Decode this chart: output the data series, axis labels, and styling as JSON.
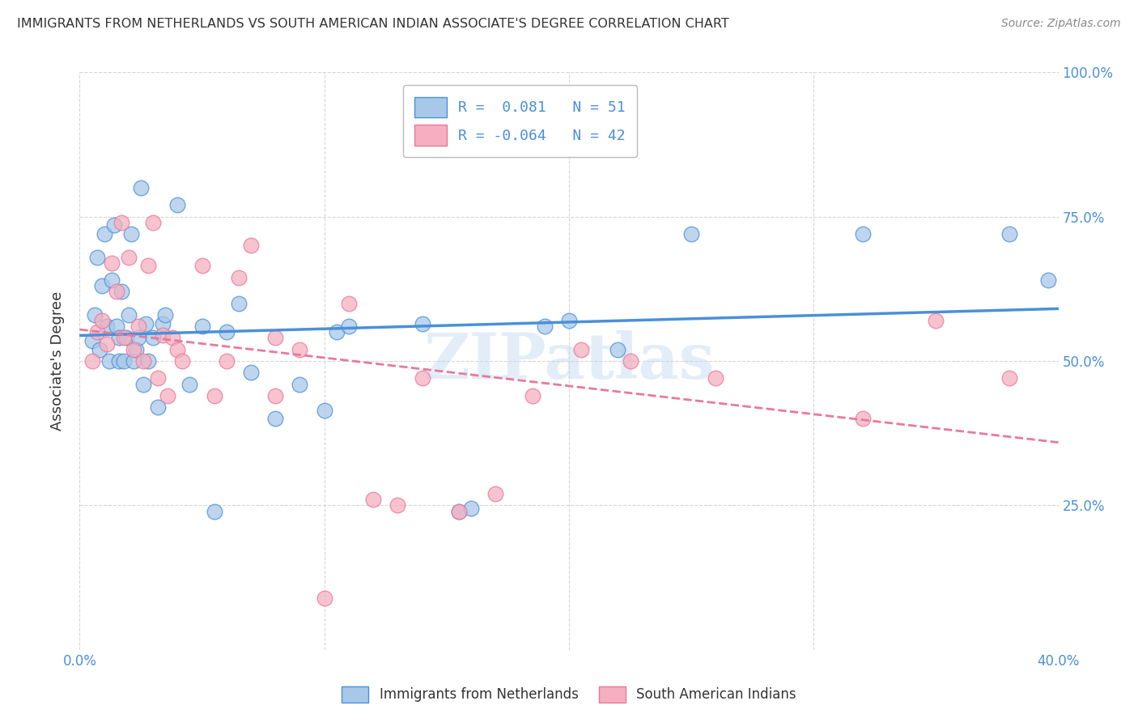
{
  "title": "IMMIGRANTS FROM NETHERLANDS VS SOUTH AMERICAN INDIAN ASSOCIATE'S DEGREE CORRELATION CHART",
  "source": "Source: ZipAtlas.com",
  "ylabel": "Associate's Degree",
  "xlim": [
    0.0,
    0.4
  ],
  "ylim": [
    0.0,
    1.0
  ],
  "xtick_vals": [
    0.0,
    0.1,
    0.2,
    0.3,
    0.4
  ],
  "xtick_labels_bottom": [
    "0.0%",
    "",
    "",
    "",
    "40.0%"
  ],
  "ytick_vals": [
    0.25,
    0.5,
    0.75,
    1.0
  ],
  "right_ytick_labels": [
    "25.0%",
    "50.0%",
    "75.0%",
    "100.0%"
  ],
  "blue_R": 0.081,
  "blue_N": 51,
  "pink_R": -0.064,
  "pink_N": 42,
  "blue_color": "#a8c8e8",
  "pink_color": "#f5afc0",
  "blue_line_color": "#4a90d9",
  "pink_line_color": "#e8799a",
  "watermark": "ZIPatlas",
  "blue_scatter_x": [
    0.005,
    0.006,
    0.007,
    0.008,
    0.009,
    0.01,
    0.011,
    0.012,
    0.013,
    0.014,
    0.015,
    0.016,
    0.016,
    0.017,
    0.018,
    0.019,
    0.02,
    0.021,
    0.022,
    0.023,
    0.024,
    0.025,
    0.026,
    0.027,
    0.028,
    0.03,
    0.032,
    0.034,
    0.035,
    0.04,
    0.045,
    0.05,
    0.055,
    0.06,
    0.065,
    0.07,
    0.08,
    0.09,
    0.1,
    0.105,
    0.11,
    0.14,
    0.155,
    0.16,
    0.19,
    0.2,
    0.22,
    0.25,
    0.32,
    0.38,
    0.396
  ],
  "blue_scatter_y": [
    0.535,
    0.58,
    0.68,
    0.52,
    0.63,
    0.72,
    0.56,
    0.5,
    0.64,
    0.735,
    0.56,
    0.5,
    0.54,
    0.62,
    0.5,
    0.54,
    0.58,
    0.72,
    0.5,
    0.52,
    0.54,
    0.8,
    0.46,
    0.565,
    0.5,
    0.54,
    0.42,
    0.565,
    0.58,
    0.77,
    0.46,
    0.56,
    0.24,
    0.55,
    0.6,
    0.48,
    0.4,
    0.46,
    0.415,
    0.55,
    0.56,
    0.565,
    0.24,
    0.245,
    0.56,
    0.57,
    0.52,
    0.72,
    0.72,
    0.72,
    0.64
  ],
  "pink_scatter_x": [
    0.005,
    0.007,
    0.009,
    0.011,
    0.013,
    0.015,
    0.017,
    0.018,
    0.02,
    0.022,
    0.024,
    0.026,
    0.028,
    0.03,
    0.032,
    0.034,
    0.036,
    0.038,
    0.04,
    0.042,
    0.05,
    0.055,
    0.06,
    0.065,
    0.07,
    0.08,
    0.09,
    0.1,
    0.11,
    0.12,
    0.13,
    0.14,
    0.155,
    0.17,
    0.185,
    0.205,
    0.225,
    0.26,
    0.32,
    0.35,
    0.08,
    0.38
  ],
  "pink_scatter_y": [
    0.5,
    0.55,
    0.57,
    0.53,
    0.67,
    0.62,
    0.74,
    0.54,
    0.68,
    0.52,
    0.56,
    0.5,
    0.665,
    0.74,
    0.47,
    0.545,
    0.44,
    0.54,
    0.52,
    0.5,
    0.665,
    0.44,
    0.5,
    0.645,
    0.7,
    0.54,
    0.52,
    0.09,
    0.6,
    0.26,
    0.25,
    0.47,
    0.24,
    0.27,
    0.44,
    0.52,
    0.5,
    0.47,
    0.4,
    0.57,
    0.44,
    0.47
  ],
  "legend_label_blue": "Immigrants from Netherlands",
  "legend_label_pink": "South American Indians",
  "background_color": "#ffffff",
  "grid_color": "#cccccc",
  "title_color": "#333333",
  "axis_color": "#4a90d9"
}
